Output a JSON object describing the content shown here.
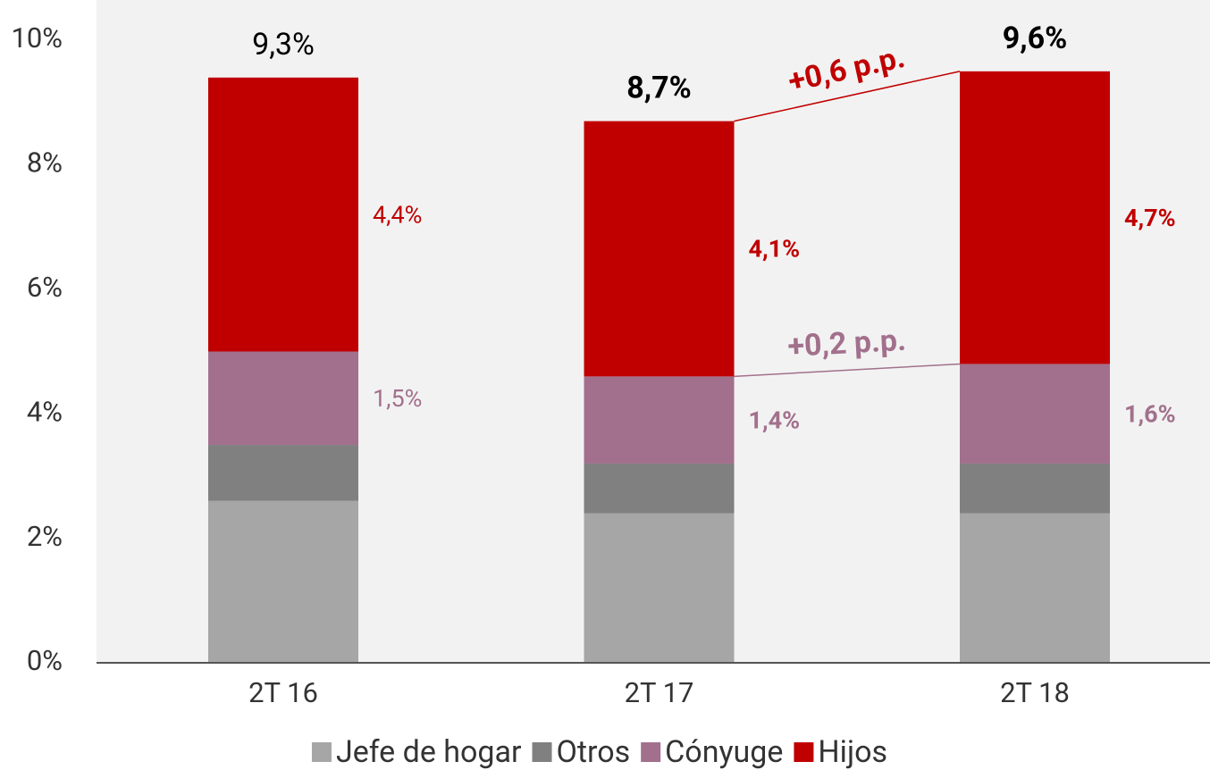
{
  "chart_data": {
    "type": "stacked_bar",
    "categories": [
      "2T 16",
      "2T 17",
      "2T 18"
    ],
    "series": [
      {
        "name": "Jefe de hogar",
        "color": "#a6a6a6",
        "values": [
          2.6,
          2.4,
          2.4
        ]
      },
      {
        "name": "Otros",
        "color": "#808080",
        "values": [
          0.9,
          0.8,
          0.8
        ]
      },
      {
        "name": "Cónyuge",
        "color": "#a2708c",
        "values": [
          1.5,
          1.4,
          1.6
        ],
        "value_labels": [
          "1,5%",
          "1,4%",
          "1,6%"
        ]
      },
      {
        "name": "Hijos",
        "color": "#c00000",
        "values": [
          4.4,
          4.1,
          4.7
        ],
        "value_labels": [
          "4,4%",
          "4,1%",
          "4,7%"
        ]
      }
    ],
    "totals": [
      9.3,
      8.7,
      9.6
    ],
    "total_labels": [
      "9,3%",
      "8,7%",
      "9,6%"
    ],
    "annotations": [
      {
        "text": "+0,6 p.p.",
        "color": "#c00000"
      },
      {
        "text": "+0,2 p.p.",
        "color": "#a2708c"
      }
    ],
    "ylim": [
      0,
      10
    ],
    "yticks": [
      {
        "value": 0,
        "label": "0%"
      },
      {
        "value": 2,
        "label": "2%"
      },
      {
        "value": 4,
        "label": "4%"
      },
      {
        "value": 6,
        "label": "6%"
      },
      {
        "value": 8,
        "label": "8%"
      },
      {
        "value": 10,
        "label": "10%"
      }
    ],
    "legend": "bottom"
  }
}
